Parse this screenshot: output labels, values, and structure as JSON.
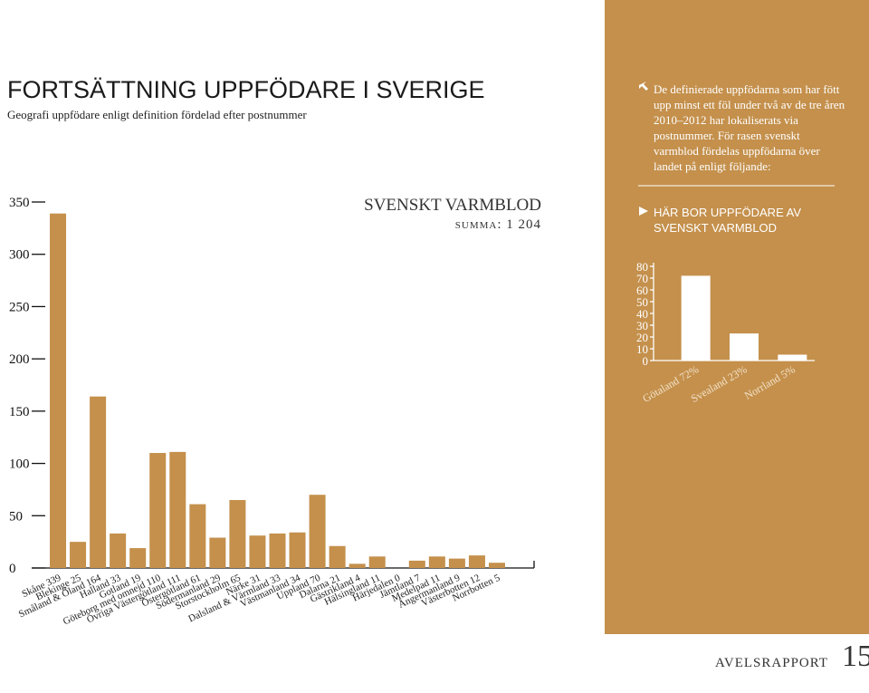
{
  "header": {
    "title": "FORTSÄTTNING UPPFÖDARE I SVERIGE",
    "subtitle": "Geografi uppfödare enligt definition fördelad efter postnummer"
  },
  "intro": "De definierade uppfödarna som har fött upp minst ett föl under två av de tre åren 2010–2012 har lokaliserats via postnummer. För rasen svenskt varmblod fördelas uppfödarna över landet på enligt följande:",
  "chart_data": [
    {
      "type": "bar",
      "title": "SVENSKT VARMBLOD",
      "subtitle": "summa: 1 204",
      "color": "#c4904c",
      "categories": [
        "Skåne",
        "Blekinge",
        "Småland & Öland",
        "Halland",
        "Gotland",
        "Göteborg med omnejd",
        "Övriga Västergötland",
        "Östergötland",
        "Södermanland",
        "Storstockholm",
        "Närke",
        "Dalsland & Värmland",
        "Västmanland",
        "Uppland",
        "Dalarna",
        "Gästrikland",
        "Hälsingland",
        "Härjedalen",
        "Jämtland",
        "Medelpad",
        "Ångermanland",
        "Västerbotten",
        "Norrbotten"
      ],
      "values": [
        339,
        25,
        164,
        33,
        19,
        110,
        111,
        61,
        29,
        65,
        31,
        33,
        34,
        70,
        21,
        4,
        11,
        0,
        7,
        11,
        9,
        12,
        5
      ],
      "ylim": [
        0,
        350
      ],
      "yticks": [
        0,
        50,
        100,
        150,
        200,
        250,
        300,
        350
      ]
    },
    {
      "type": "bar",
      "title": "HÄR BOR UPPFÖDARE AV SVENSKT VARMBLOD",
      "color": "#ffffff",
      "categories": [
        "Götaland",
        "Svealand",
        "Norrland"
      ],
      "values": [
        72,
        23,
        5
      ],
      "value_labels": [
        "72%",
        "23%",
        "5%"
      ],
      "ylim": [
        0,
        80
      ],
      "yticks": [
        0,
        10,
        20,
        30,
        40,
        50,
        60,
        70,
        80
      ]
    }
  ],
  "footer": {
    "section": "AVELSRAPPORT",
    "page": "15"
  }
}
